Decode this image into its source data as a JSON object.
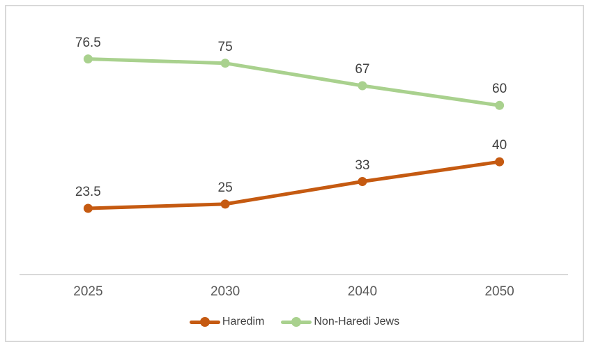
{
  "chart_data": {
    "type": "line",
    "title": "",
    "xlabel": "",
    "ylabel": "",
    "categories": [
      "2025",
      "2030",
      "2040",
      "2050"
    ],
    "series": [
      {
        "name": "Haredim",
        "color": "#C55A11",
        "values": [
          23.5,
          25,
          33,
          40
        ],
        "point_labels": [
          "23.5",
          "25",
          "33",
          "40"
        ]
      },
      {
        "name": "Non-Haredi Jews",
        "color": "#A9D18E",
        "values": [
          76.5,
          75,
          67,
          60
        ],
        "point_labels": [
          "76.5",
          "75",
          "67",
          "60"
        ]
      }
    ],
    "ylim": [
      0,
      90
    ],
    "grid": false,
    "data_labels_position": "above points",
    "legend_position": "bottom center",
    "axis_line_color": "#D9D9D9",
    "frame_border_color": "#D9D9D9",
    "data_label_color": "#404040",
    "tick_label_color": "#595959",
    "background_color": "#FFFFFF"
  }
}
